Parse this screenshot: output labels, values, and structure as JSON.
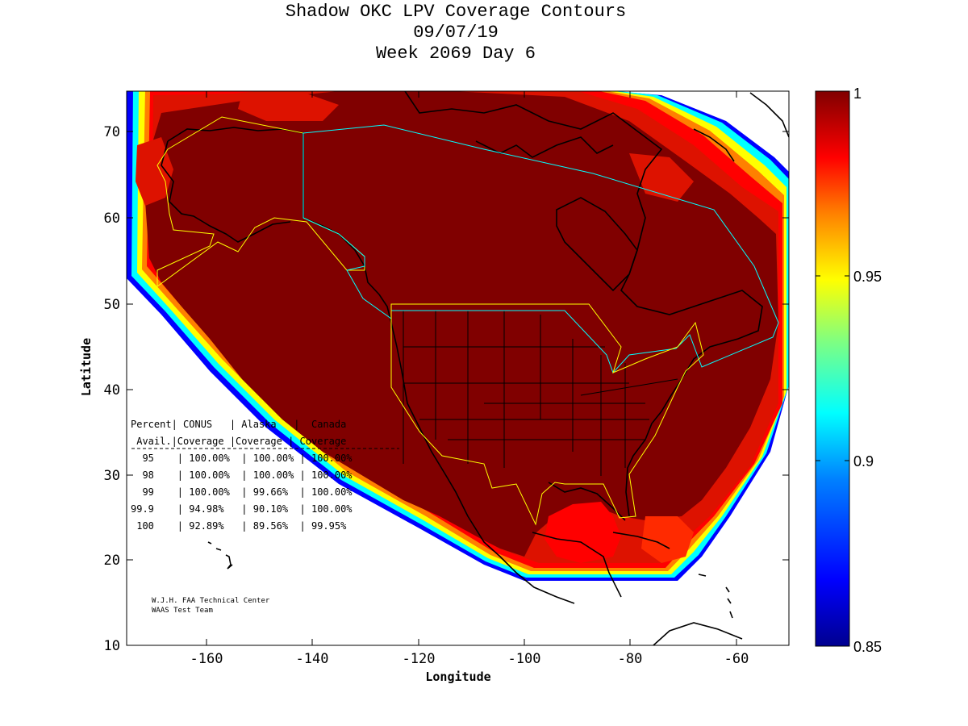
{
  "title": {
    "line1": "Shadow OKC LPV Coverage Contours",
    "line2": "09/07/19",
    "line3": "Week 2069 Day 6"
  },
  "axes": {
    "xlabel": "Longitude",
    "ylabel": "Latitude",
    "xticks": [
      "-160",
      "-140",
      "-120",
      "-100",
      "-80",
      "-60"
    ],
    "yticks": [
      "70",
      "60",
      "50",
      "40",
      "30",
      "20",
      "10"
    ]
  },
  "colorbar": {
    "ticks": [
      "1",
      "0.95",
      "0.9",
      "0.85"
    ],
    "colors": [
      "#00008f",
      "#0050ff",
      "#00c0ff",
      "#40ffbf",
      "#ffff00",
      "#ff8000",
      "#ff0000",
      "#800000"
    ]
  },
  "table": {
    "header1": "Percent| CONUS   | Alaska   |  Canada",
    "header2": " Avail.|Coverage |Coverage | Coverage",
    "rows": [
      "  95    | 100.00%  | 100.00% | 100.00%",
      "  98    | 100.00%  | 100.00% | 100.00%",
      "  99    | 100.00%  | 99.66%  | 100.00%",
      "99.9    | 94.98%   | 90.10%  | 100.00%",
      " 100    | 92.89%   | 89.56%  | 99.95%"
    ]
  },
  "credit": {
    "line1": "W.J.H. FAA Technical Center",
    "line2": "WAAS Test Team"
  }
}
